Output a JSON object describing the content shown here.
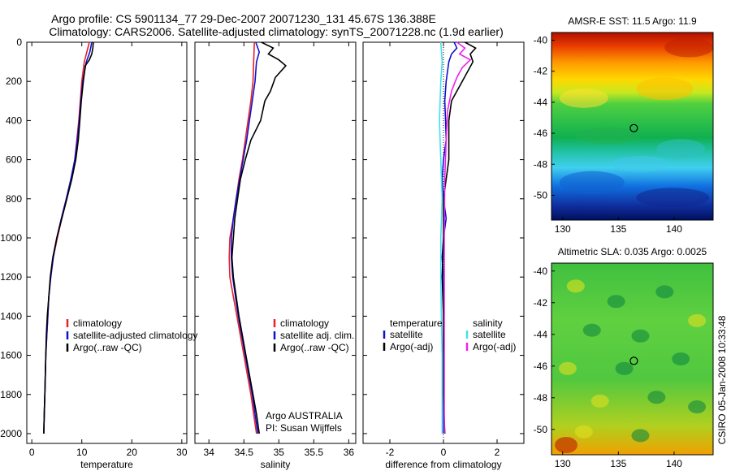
{
  "title_line1": "Argo profile: CS 5901134_77 29-Dec-2007 20071230_131 45.67S 136.388E",
  "title_line2": "Climatology: CARS2006. Satellite-adjusted climatology: synTS_20071228.nc (1.9d earlier)",
  "side_label": "CSIRO 05-Jan-2008 10:33:48",
  "colors": {
    "climatology": "#e8202a",
    "satellite": "#1010d0",
    "argo": "#000000",
    "salinity_satellite": "#40e0f0",
    "salinity_argo": "#f020f0",
    "marker": "#000000"
  },
  "chart_data": [
    {
      "type": "line",
      "name": "temperature-profile",
      "xlabel": "temperature",
      "ylabel": "",
      "xlim": [
        -1,
        31
      ],
      "ylim": [
        2050,
        0
      ],
      "y_reversed": true,
      "xticks": [
        0,
        10,
        20,
        30
      ],
      "yticks": [
        0,
        200,
        400,
        600,
        800,
        1000,
        1200,
        1400,
        1600,
        1800,
        2000
      ],
      "series": [
        {
          "name": "climatology",
          "color_key": "climatology",
          "points": [
            [
              11.5,
              0
            ],
            [
              11.0,
              50
            ],
            [
              10.5,
              100
            ],
            [
              10.0,
              200
            ],
            [
              9.7,
              300
            ],
            [
              9.4,
              400
            ],
            [
              9.0,
              500
            ],
            [
              8.6,
              600
            ],
            [
              7.9,
              700
            ],
            [
              7.0,
              800
            ],
            [
              6.0,
              900
            ],
            [
              5.1,
              1000
            ],
            [
              4.3,
              1100
            ],
            [
              3.8,
              1200
            ],
            [
              3.4,
              1300
            ],
            [
              3.2,
              1400
            ],
            [
              3.0,
              1500
            ],
            [
              2.8,
              1600
            ],
            [
              2.7,
              1700
            ],
            [
              2.6,
              1800
            ],
            [
              2.5,
              1900
            ],
            [
              2.4,
              2000
            ]
          ]
        },
        {
          "name": "satellite-adjusted climatology",
          "color_key": "satellite",
          "points": [
            [
              12.0,
              0
            ],
            [
              11.6,
              50
            ],
            [
              10.9,
              100
            ],
            [
              10.2,
              200
            ],
            [
              9.8,
              300
            ],
            [
              9.5,
              400
            ],
            [
              9.1,
              500
            ],
            [
              8.6,
              600
            ],
            [
              7.8,
              700
            ],
            [
              6.9,
              800
            ],
            [
              5.9,
              900
            ],
            [
              5.0,
              1000
            ],
            [
              4.3,
              1100
            ],
            [
              3.8,
              1200
            ],
            [
              3.4,
              1300
            ],
            [
              3.2,
              1400
            ],
            [
              3.0,
              1500
            ],
            [
              2.8,
              1600
            ],
            [
              2.7,
              1700
            ],
            [
              2.6,
              1800
            ],
            [
              2.5,
              1900
            ],
            [
              2.4,
              2000
            ]
          ]
        },
        {
          "name": "Argo(..raw -QC)",
          "color_key": "argo",
          "points": [
            [
              12.3,
              0
            ],
            [
              12.2,
              30
            ],
            [
              12.0,
              60
            ],
            [
              11.5,
              90
            ],
            [
              10.7,
              120
            ],
            [
              10.3,
              200
            ],
            [
              9.9,
              300
            ],
            [
              9.6,
              400
            ],
            [
              9.3,
              500
            ],
            [
              8.8,
              600
            ],
            [
              8.0,
              700
            ],
            [
              7.0,
              800
            ],
            [
              6.0,
              900
            ],
            [
              5.0,
              1000
            ],
            [
              4.2,
              1100
            ],
            [
              3.7,
              1200
            ],
            [
              3.4,
              1300
            ],
            [
              3.1,
              1400
            ],
            [
              2.9,
              1500
            ],
            [
              2.8,
              1600
            ],
            [
              2.7,
              1700
            ],
            [
              2.6,
              1800
            ],
            [
              2.5,
              1900
            ],
            [
              2.4,
              2000
            ]
          ]
        }
      ],
      "legend": [
        "climatology",
        "satellite-adjusted climatology",
        "Argo(..raw -QC)"
      ]
    },
    {
      "type": "line",
      "name": "salinity-profile",
      "xlabel": "salinity",
      "ylabel": "",
      "xlim": [
        33.8,
        36.1
      ],
      "ylim": [
        2050,
        0
      ],
      "y_reversed": true,
      "xticks": [
        34,
        34.5,
        35,
        35.5,
        36
      ],
      "annotation": [
        "Argo AUSTRALIA",
        "PI: Susan Wijffels"
      ],
      "series": [
        {
          "name": "climatology",
          "color_key": "climatology",
          "points": [
            [
              34.65,
              0
            ],
            [
              34.64,
              100
            ],
            [
              34.63,
              200
            ],
            [
              34.6,
              300
            ],
            [
              34.56,
              400
            ],
            [
              34.52,
              500
            ],
            [
              34.48,
              600
            ],
            [
              34.43,
              700
            ],
            [
              34.39,
              800
            ],
            [
              34.35,
              900
            ],
            [
              34.3,
              1000
            ],
            [
              34.29,
              1100
            ],
            [
              34.3,
              1200
            ],
            [
              34.35,
              1300
            ],
            [
              34.4,
              1400
            ],
            [
              34.45,
              1500
            ],
            [
              34.5,
              1600
            ],
            [
              34.55,
              1700
            ],
            [
              34.6,
              1800
            ],
            [
              34.64,
              1900
            ],
            [
              34.68,
              2000
            ]
          ]
        },
        {
          "name": "satellite adj. clim.",
          "color_key": "satellite",
          "points": [
            [
              34.67,
              0
            ],
            [
              34.72,
              50
            ],
            [
              34.68,
              100
            ],
            [
              34.66,
              200
            ],
            [
              34.62,
              300
            ],
            [
              34.58,
              400
            ],
            [
              34.54,
              500
            ],
            [
              34.49,
              600
            ],
            [
              34.44,
              700
            ],
            [
              34.39,
              800
            ],
            [
              34.35,
              900
            ],
            [
              34.32,
              1000
            ],
            [
              34.32,
              1100
            ],
            [
              34.34,
              1200
            ],
            [
              34.38,
              1300
            ],
            [
              34.42,
              1400
            ],
            [
              34.47,
              1500
            ],
            [
              34.52,
              1600
            ],
            [
              34.57,
              1700
            ],
            [
              34.62,
              1800
            ],
            [
              34.66,
              1900
            ],
            [
              34.7,
              2000
            ]
          ]
        },
        {
          "name": "Argo(..raw -QC)",
          "color_key": "argo",
          "points": [
            [
              34.75,
              0
            ],
            [
              34.92,
              30
            ],
            [
              34.85,
              60
            ],
            [
              35.0,
              90
            ],
            [
              35.1,
              120
            ],
            [
              34.95,
              180
            ],
            [
              34.88,
              250
            ],
            [
              34.8,
              300
            ],
            [
              34.74,
              400
            ],
            [
              34.6,
              500
            ],
            [
              34.52,
              600
            ],
            [
              34.45,
              700
            ],
            [
              34.41,
              800
            ],
            [
              34.37,
              900
            ],
            [
              34.35,
              1000
            ],
            [
              34.33,
              1100
            ],
            [
              34.35,
              1200
            ],
            [
              34.39,
              1300
            ],
            [
              34.43,
              1400
            ],
            [
              34.48,
              1500
            ],
            [
              34.53,
              1600
            ],
            [
              34.58,
              1700
            ],
            [
              34.63,
              1800
            ],
            [
              34.68,
              1900
            ],
            [
              34.72,
              2000
            ]
          ]
        }
      ],
      "legend": [
        "climatology",
        "satellite adj. clim.",
        "Argo(..raw -QC)"
      ]
    },
    {
      "type": "line",
      "name": "difference-profile",
      "xlabel": "difference from climatology",
      "ylabel": "",
      "xlim": [
        -3,
        3
      ],
      "ylim": [
        2050,
        0
      ],
      "y_reversed": true,
      "xticks": [
        -2,
        0,
        2
      ],
      "legend_headers": [
        "temperature",
        "salinity"
      ],
      "series": [
        {
          "name": "temperature satellite",
          "color_key": "satellite",
          "points": [
            [
              0.4,
              0
            ],
            [
              0.5,
              30
            ],
            [
              0.3,
              60
            ],
            [
              0.2,
              100
            ],
            [
              0.1,
              200
            ],
            [
              0.05,
              300
            ],
            [
              0.08,
              400
            ],
            [
              0.1,
              500
            ],
            [
              0.0,
              600
            ],
            [
              -0.05,
              700
            ],
            [
              0.0,
              800
            ],
            [
              0.1,
              900
            ],
            [
              0.0,
              1000
            ],
            [
              -0.05,
              1100
            ],
            [
              0.0,
              1200
            ],
            [
              0.0,
              1400
            ],
            [
              0.0,
              1600
            ],
            [
              0.0,
              1800
            ],
            [
              0.0,
              2000
            ]
          ]
        },
        {
          "name": "temperature Argo(-adj)",
          "color_key": "argo",
          "points": [
            [
              0.8,
              0
            ],
            [
              1.2,
              30
            ],
            [
              1.0,
              60
            ],
            [
              1.1,
              100
            ],
            [
              0.7,
              200
            ],
            [
              0.3,
              300
            ],
            [
              0.2,
              400
            ],
            [
              0.2,
              500
            ],
            [
              0.2,
              600
            ],
            [
              0.1,
              700
            ],
            [
              0.0,
              800
            ],
            [
              0.0,
              1000
            ],
            [
              -0.05,
              1200
            ],
            [
              0.0,
              1400
            ],
            [
              0.0,
              1600
            ],
            [
              0.0,
              1800
            ],
            [
              0.05,
              2000
            ]
          ]
        },
        {
          "name": "salinity satellite",
          "color_key": "salinity_satellite",
          "points": [
            [
              -0.1,
              0
            ],
            [
              -0.05,
              100
            ],
            [
              -0.1,
              200
            ],
            [
              -0.15,
              400
            ],
            [
              -0.1,
              600
            ],
            [
              -0.05,
              800
            ],
            [
              -0.1,
              1000
            ],
            [
              -0.1,
              1200
            ],
            [
              -0.08,
              1400
            ],
            [
              -0.05,
              1600
            ],
            [
              -0.05,
              1800
            ],
            [
              -0.05,
              2000
            ]
          ]
        },
        {
          "name": "salinity Argo(-adj)",
          "color_key": "salinity_argo",
          "points": [
            [
              0.5,
              0
            ],
            [
              0.8,
              30
            ],
            [
              0.6,
              60
            ],
            [
              1.0,
              90
            ],
            [
              0.7,
              130
            ],
            [
              0.5,
              180
            ],
            [
              0.3,
              250
            ],
            [
              0.15,
              350
            ],
            [
              0.1,
              500
            ],
            [
              0.05,
              700
            ],
            [
              0.03,
              1000
            ],
            [
              0.03,
              1200
            ],
            [
              0.03,
              1500
            ],
            [
              0.03,
              1800
            ],
            [
              0.03,
              2000
            ]
          ]
        }
      ],
      "legend": {
        "temperature": [
          "satellite",
          "Argo(-adj)"
        ],
        "salinity": [
          "satellite",
          "Argo(-adj)"
        ]
      }
    },
    {
      "type": "heatmap",
      "name": "sst-map",
      "title": "AMSR-E SST: 11.5  Argo: 11.9",
      "xlim": [
        129,
        143.5
      ],
      "ylim": [
        -51.6,
        -39.5
      ],
      "xticks": [
        130,
        135,
        140
      ],
      "yticks": [
        -40,
        -42,
        -44,
        -46,
        -48,
        -50
      ],
      "marker": {
        "lon": 136.388,
        "lat": -45.67
      }
    },
    {
      "type": "heatmap",
      "name": "sla-map",
      "title": "Altimetric SLA: 0.035  Argo: 0.0025",
      "xlim": [
        129,
        143.5
      ],
      "ylim": [
        -51.6,
        -39.5
      ],
      "xticks": [
        130,
        135,
        140
      ],
      "yticks": [
        -40,
        -42,
        -44,
        -46,
        -48,
        -50
      ],
      "marker": {
        "lon": 136.388,
        "lat": -45.67
      }
    }
  ]
}
